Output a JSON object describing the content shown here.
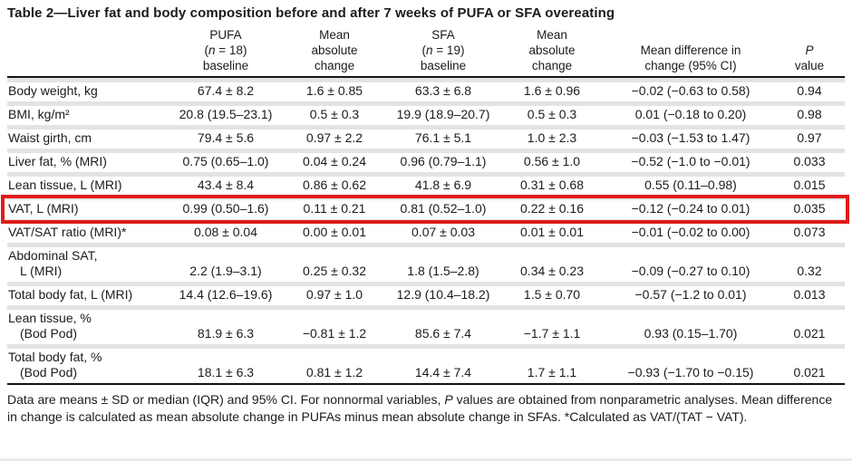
{
  "colors": {
    "highlight": "#e01b1b",
    "row_divider": "#e3e3e3",
    "rule": "#141414",
    "text": "#1b1b1b"
  },
  "table": {
    "title": "Table 2—Liver fat and body composition before and after 7 weeks of PUFA or SFA overeating",
    "header": {
      "pufa": {
        "line1": "PUFA",
        "n_pre": "(",
        "n_italic": "n",
        "n_post": " = 18)",
        "line3": "baseline"
      },
      "pufa_change": {
        "line1": "Mean",
        "line2": "absolute",
        "line3": "change"
      },
      "sfa": {
        "line1": "SFA",
        "n_pre": "(",
        "n_italic": "n",
        "n_post": " = 19)",
        "line3": "baseline"
      },
      "sfa_change": {
        "line1": "Mean",
        "line2": "absolute",
        "line3": "change"
      },
      "mean_diff": {
        "line1": "Mean difference in",
        "line2": "change (95% CI)"
      },
      "p": {
        "italic": "P",
        "line2": "value"
      }
    },
    "rows": [
      {
        "label": "Body weight, kg",
        "label2": "",
        "highlighted": false,
        "values": [
          "67.4 ± 8.2",
          "1.6 ± 0.85",
          "63.3 ± 6.8",
          "1.6 ± 0.96",
          "−0.02 (−0.63 to 0.58)",
          "0.94"
        ]
      },
      {
        "label": "BMI, kg/m²",
        "label2": "",
        "highlighted": false,
        "values": [
          "20.8 (19.5–23.1)",
          "0.5 ± 0.3",
          "19.9 (18.9–20.7)",
          "0.5 ± 0.3",
          "0.01 (−0.18 to 0.20)",
          "0.98"
        ]
      },
      {
        "label": "Waist girth, cm",
        "label2": "",
        "highlighted": false,
        "values": [
          "79.4 ± 5.6",
          "0.97 ± 2.2",
          "76.1 ± 5.1",
          "1.0 ± 2.3",
          "−0.03 (−1.53 to 1.47)",
          "0.97"
        ]
      },
      {
        "label": "Liver fat, % (MRI)",
        "label2": "",
        "highlighted": false,
        "values": [
          "0.75 (0.65–1.0)",
          "0.04 ± 0.24",
          "0.96 (0.79–1.1)",
          "0.56 ± 1.0",
          "−0.52 (−1.0 to −0.01)",
          "0.033"
        ]
      },
      {
        "label": "Lean tissue, L (MRI)",
        "label2": "",
        "highlighted": false,
        "values": [
          "43.4 ± 8.4",
          "0.86 ± 0.62",
          "41.8 ± 6.9",
          "0.31 ± 0.68",
          "0.55 (0.11–0.98)",
          "0.015"
        ]
      },
      {
        "label": "VAT, L (MRI)",
        "label2": "",
        "highlighted": true,
        "values": [
          "0.99 (0.50–1.6)",
          "0.11 ± 0.21",
          "0.81 (0.52–1.0)",
          "0.22 ± 0.16",
          "−0.12 (−0.24 to 0.01)",
          "0.035"
        ]
      },
      {
        "label": "VAT/SAT ratio (MRI)*",
        "label2": "",
        "highlighted": false,
        "values": [
          "0.08 ± 0.04",
          "0.00 ± 0.01",
          "0.07 ± 0.03",
          "0.01 ± 0.01",
          "−0.01 (−0.02 to 0.00)",
          "0.073"
        ]
      },
      {
        "label": "Abdominal SAT,",
        "label2": "L (MRI)",
        "highlighted": false,
        "values": [
          "2.2 (1.9–3.1)",
          "0.25 ± 0.32",
          "1.8 (1.5–2.8)",
          "0.34 ± 0.23",
          "−0.09 (−0.27 to 0.10)",
          "0.32"
        ]
      },
      {
        "label": "Total body fat, L (MRI)",
        "label2": "",
        "highlighted": false,
        "values": [
          "14.4 (12.6–19.6)",
          "0.97 ± 1.0",
          "12.9 (10.4–18.2)",
          "1.5 ± 0.70",
          "−0.57 (−1.2 to 0.01)",
          "0.013"
        ]
      },
      {
        "label": "Lean tissue, %",
        "label2": "(Bod Pod)",
        "highlighted": false,
        "values": [
          "81.9 ± 6.3",
          "−0.81 ± 1.2",
          "85.6 ± 7.4",
          "−1.7 ± 1.1",
          "0.93 (0.15–1.70)",
          "0.021"
        ]
      },
      {
        "label": "Total body fat, %",
        "label2": "(Bod Pod)",
        "highlighted": false,
        "values": [
          "18.1 ± 6.3",
          "0.81 ± 1.2",
          "14.4 ± 7.4",
          "1.7 ± 1.1",
          "−0.93 (−1.70 to −0.15)",
          "0.021"
        ]
      }
    ],
    "footnote": {
      "part1": "Data are means ± SD or median (IQR) and 95% CI. For nonnormal variables, ",
      "italic_p": "P",
      "part2": " values are obtained from nonparametric analyses. Mean difference in change is calculated as mean absolute change in PUFAs minus mean absolute change in SFAs. *Calculated as VAT/(TAT − VAT)."
    }
  }
}
